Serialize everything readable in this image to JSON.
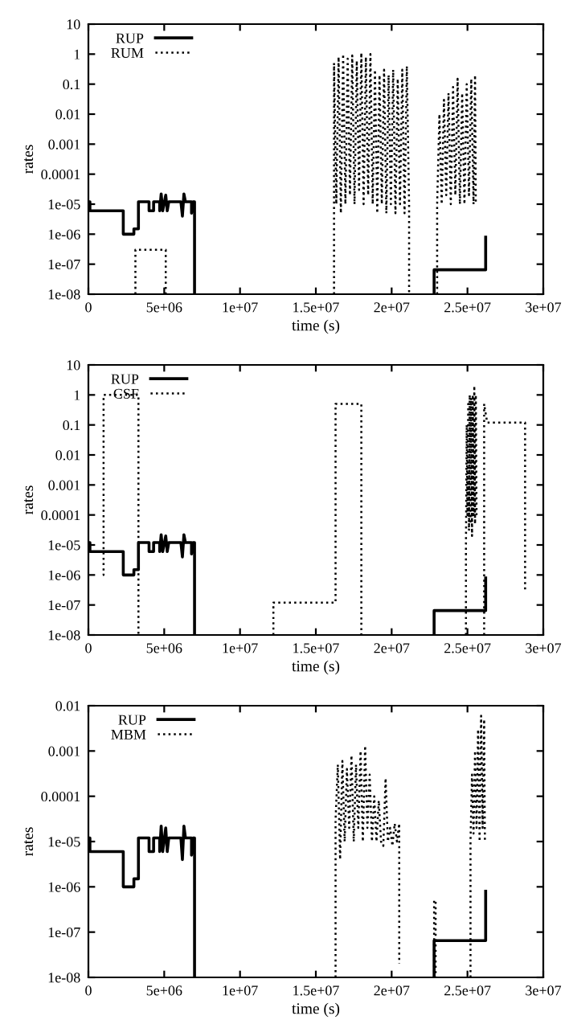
{
  "chart_data": [
    {
      "type": "line",
      "xlabel": "time (s)",
      "ylabel": "rates",
      "log": "y",
      "grid": false,
      "legend": "top left",
      "xlim": [
        0,
        30000000
      ],
      "xticks": [
        0,
        {
          "value": 5000000,
          "label": "5e+06"
        },
        {
          "value": 10000000,
          "label": "1e+07"
        },
        {
          "value": 15000000,
          "label": "1.5e+07"
        },
        {
          "value": 20000000,
          "label": "2e+07"
        },
        {
          "value": 25000000,
          "label": "2.5e+07"
        },
        {
          "value": 30000000,
          "label": "3e+07"
        }
      ],
      "ylim": [
        1e-08,
        10
      ],
      "yticks": [
        {
          "value": 1e-08,
          "label": "1e-08"
        },
        {
          "value": 1e-07,
          "label": "1e-07"
        },
        {
          "value": 1e-06,
          "label": "1e-06"
        },
        {
          "value": 1e-05,
          "label": "1e-05"
        },
        0.0001,
        0.001,
        0.01,
        0.1,
        1,
        10
      ],
      "series": [
        {
          "name": "RUP",
          "color": "#000000",
          "line_style": "solid",
          "x": [
            0,
            100000,
            100000,
            2300000,
            2300000,
            3000000,
            3000000,
            3300000,
            3300000,
            4000000,
            4000000,
            4300000,
            4300000,
            4700000,
            4700000,
            4800000,
            4900000,
            5100000,
            5200000,
            5300000,
            6100000,
            6200000,
            6300000,
            6400000,
            6800000,
            6800000,
            6900000,
            7000000,
            7000000,
            15000000,
            22800000,
            22800000,
            26200000,
            26200000
          ],
          "values": [
            1.2e-05,
            1.2e-05,
            6e-06,
            6e-06,
            1e-06,
            1e-06,
            1.5e-06,
            1.5e-06,
            1.2e-05,
            1.2e-05,
            6e-06,
            6e-06,
            1.2e-05,
            1.2e-05,
            6e-06,
            2.2e-05,
            6e-06,
            2e-05,
            6e-06,
            1.2e-05,
            1.2e-05,
            4e-06,
            2.2e-05,
            1.2e-05,
            1.2e-05,
            5e-06,
            1.2e-05,
            1.2e-05,
            1e-08,
            null,
            1e-08,
            6.5e-08,
            6.5e-08,
            8e-07
          ]
        },
        {
          "name": "RUM",
          "color": "#000000",
          "line_style": "dotted",
          "x": [
            3100000,
            3100000,
            5100000,
            5100000,
            10000000,
            16200000,
            16200000,
            16350000,
            16500000,
            16650000,
            16800000,
            16950000,
            17100000,
            17250000,
            17400000,
            17550000,
            17700000,
            17850000,
            18000000,
            18150000,
            18300000,
            18450000,
            18600000,
            18750000,
            18900000,
            19050000,
            19200000,
            19350000,
            19500000,
            19650000,
            19800000,
            19950000,
            20100000,
            20250000,
            20400000,
            20550000,
            20700000,
            20850000,
            21000000,
            21150000,
            21150000,
            22000000,
            23000000,
            23000000,
            23150000,
            23300000,
            23450000,
            23600000,
            23750000,
            23900000,
            24050000,
            24200000,
            24350000,
            24500000,
            24650000,
            24800000,
            24950000,
            25100000,
            25250000,
            25400000,
            25500000,
            25550000
          ],
          "values": [
            1e-08,
            3e-07,
            3e-07,
            1e-08,
            null,
            1e-08,
            0.5,
            1e-05,
            0.8,
            5e-06,
            1.0,
            1e-05,
            0.7,
            2e-05,
            0.9,
            1e-05,
            0.6,
            3e-05,
            1.1,
            1e-05,
            0.8,
            2e-05,
            1.0,
            1e-05,
            0.3,
            5e-06,
            0.2,
            1e-05,
            0.3,
            5e-06,
            0.2,
            1e-05,
            0.3,
            5e-06,
            0.15,
            1e-05,
            0.3,
            5e-06,
            0.4,
            1e-05,
            1e-08,
            null,
            1e-08,
            1e-05,
            0.01,
            1e-05,
            0.03,
            2e-05,
            0.05,
            1e-05,
            0.08,
            2e-05,
            0.15,
            1e-05,
            0.05,
            1e-05,
            0.1,
            2e-05,
            0.15,
            1e-05,
            0.2,
            1e-05
          ]
        }
      ]
    },
    {
      "type": "line",
      "xlabel": "time (s)",
      "ylabel": "rates",
      "log": "y",
      "grid": false,
      "legend": "top left",
      "xlim": [
        0,
        30000000
      ],
      "xticks": [
        0,
        {
          "value": 5000000,
          "label": "5e+06"
        },
        {
          "value": 10000000,
          "label": "1e+07"
        },
        {
          "value": 15000000,
          "label": "1.5e+07"
        },
        {
          "value": 20000000,
          "label": "2e+07"
        },
        {
          "value": 25000000,
          "label": "2.5e+07"
        },
        {
          "value": 30000000,
          "label": "3e+07"
        }
      ],
      "ylim": [
        1e-08,
        10
      ],
      "yticks": [
        {
          "value": 1e-08,
          "label": "1e-08"
        },
        {
          "value": 1e-07,
          "label": "1e-07"
        },
        {
          "value": 1e-06,
          "label": "1e-06"
        },
        {
          "value": 1e-05,
          "label": "1e-05"
        },
        0.0001,
        0.001,
        0.01,
        0.1,
        1,
        10
      ],
      "series": [
        {
          "name": "RUP",
          "color": "#000000",
          "line_style": "solid",
          "x": [
            0,
            100000,
            100000,
            2300000,
            2300000,
            3000000,
            3000000,
            3300000,
            3300000,
            4000000,
            4000000,
            4300000,
            4300000,
            4700000,
            4700000,
            4800000,
            4900000,
            5100000,
            5200000,
            5300000,
            6100000,
            6200000,
            6300000,
            6400000,
            6800000,
            6800000,
            6900000,
            7000000,
            7000000,
            15000000,
            22800000,
            22800000,
            26200000,
            26200000
          ],
          "values": [
            1.2e-05,
            1.2e-05,
            6e-06,
            6e-06,
            1e-06,
            1e-06,
            1.5e-06,
            1.5e-06,
            1.2e-05,
            1.2e-05,
            6e-06,
            6e-06,
            1.2e-05,
            1.2e-05,
            6e-06,
            2.2e-05,
            6e-06,
            2e-05,
            6e-06,
            1.2e-05,
            1.2e-05,
            4e-06,
            2.2e-05,
            1.2e-05,
            1.2e-05,
            5e-06,
            1.2e-05,
            1.2e-05,
            1e-08,
            null,
            1e-08,
            6.5e-08,
            6.5e-08,
            8e-07
          ]
        },
        {
          "name": "CSF",
          "color": "#000000",
          "line_style": "dotted",
          "x": [
            950000,
            1000000,
            1000000,
            3300000,
            3300000,
            8000000,
            12200000,
            12200000,
            16300000,
            16300000,
            18000000,
            18000000,
            20000000,
            24900000,
            24900000,
            24950000,
            25000000,
            25050000,
            25100000,
            25150000,
            25200000,
            25250000,
            25300000,
            25350000,
            25400000,
            25450000,
            25500000,
            25550000,
            25600000,
            25800000,
            26100000,
            26100000,
            26300000,
            28800000,
            28800000
          ],
          "values": [
            1e-06,
            1e-06,
            1,
            1,
            1e-08,
            null,
            1e-08,
            1.2e-07,
            1.2e-07,
            0.5,
            0.5,
            1e-08,
            null,
            1e-08,
            1e-05,
            0.1,
            0.0001,
            0.5,
            3e-05,
            1,
            5e-05,
            0.8,
            2e-05,
            1,
            0.0001,
            2,
            5e-05,
            1,
            0.0001,
            null,
            1e-08,
            0.5,
            0.12,
            0.12,
            3e-07
          ]
        }
      ]
    },
    {
      "type": "line",
      "xlabel": "time (s)",
      "ylabel": "rates",
      "log": "y",
      "grid": false,
      "legend": "top left",
      "xlim": [
        0,
        30000000
      ],
      "xticks": [
        0,
        {
          "value": 5000000,
          "label": "5e+06"
        },
        {
          "value": 10000000,
          "label": "1e+07"
        },
        {
          "value": 15000000,
          "label": "1.5e+07"
        },
        {
          "value": 20000000,
          "label": "2e+07"
        },
        {
          "value": 25000000,
          "label": "2.5e+07"
        },
        {
          "value": 30000000,
          "label": "3e+07"
        }
      ],
      "ylim": [
        1e-08,
        0.01
      ],
      "yticks": [
        {
          "value": 1e-08,
          "label": "1e-08"
        },
        {
          "value": 1e-07,
          "label": "1e-07"
        },
        {
          "value": 1e-06,
          "label": "1e-06"
        },
        {
          "value": 1e-05,
          "label": "1e-05"
        },
        0.0001,
        0.001,
        0.01
      ],
      "series": [
        {
          "name": "RUP",
          "color": "#000000",
          "line_style": "solid",
          "x": [
            0,
            100000,
            100000,
            2300000,
            2300000,
            3000000,
            3000000,
            3300000,
            3300000,
            4000000,
            4000000,
            4300000,
            4300000,
            4700000,
            4700000,
            4800000,
            4900000,
            5100000,
            5200000,
            5300000,
            6100000,
            6200000,
            6300000,
            6400000,
            6800000,
            6800000,
            6900000,
            7000000,
            7000000,
            15000000,
            22800000,
            22800000,
            26200000,
            26200000
          ],
          "values": [
            1.2e-05,
            1.2e-05,
            6e-06,
            6e-06,
            1e-06,
            1e-06,
            1.5e-06,
            1.5e-06,
            1.2e-05,
            1.2e-05,
            6e-06,
            6e-06,
            1.2e-05,
            1.2e-05,
            6e-06,
            2.2e-05,
            6e-06,
            2e-05,
            6e-06,
            1.2e-05,
            1.2e-05,
            4e-06,
            2.2e-05,
            1.2e-05,
            1.2e-05,
            5e-06,
            1.2e-05,
            1.2e-05,
            1e-08,
            null,
            1e-08,
            6.5e-08,
            6.5e-08,
            8e-07
          ]
        },
        {
          "name": "MBM",
          "color": "#000000",
          "line_style": "dotted",
          "x": [
            16300000,
            16300000,
            16450000,
            16600000,
            16750000,
            16900000,
            17050000,
            17200000,
            17350000,
            17500000,
            17650000,
            17800000,
            17950000,
            18100000,
            18250000,
            18400000,
            18550000,
            18700000,
            18850000,
            19000000,
            19150000,
            19300000,
            19450000,
            19600000,
            19750000,
            19900000,
            20050000,
            20200000,
            20350000,
            20500000,
            20500000,
            21500000,
            22800000,
            22800000,
            22900000,
            22900000,
            24000000,
            25200000,
            25200000,
            25300000,
            25400000,
            25500000,
            25600000,
            25700000,
            25800000,
            25900000,
            26000000,
            26100000,
            26150000
          ],
          "values": [
            1e-08,
            3e-05,
            0.0005,
            4e-06,
            0.0006,
            1e-05,
            0.0004,
            2e-05,
            0.0008,
            1e-05,
            0.0005,
            2e-05,
            0.001,
            1e-05,
            0.0013,
            2e-05,
            0.0003,
            1e-05,
            0.0001,
            1e-05,
            8e-05,
            1e-05,
            8e-06,
            0.00025,
            1e-05,
            2e-05,
            8e-06,
            2.5e-05,
            1e-05,
            2.5e-05,
            2e-08,
            null,
            1e-08,
            5e-07,
            5e-07,
            1e-08,
            null,
            1e-08,
            1e-05,
            0.0003,
            1.5e-05,
            0.001,
            2e-05,
            0.003,
            1e-05,
            0.006,
            2e-05,
            0.005,
            1e-05
          ]
        }
      ]
    }
  ]
}
